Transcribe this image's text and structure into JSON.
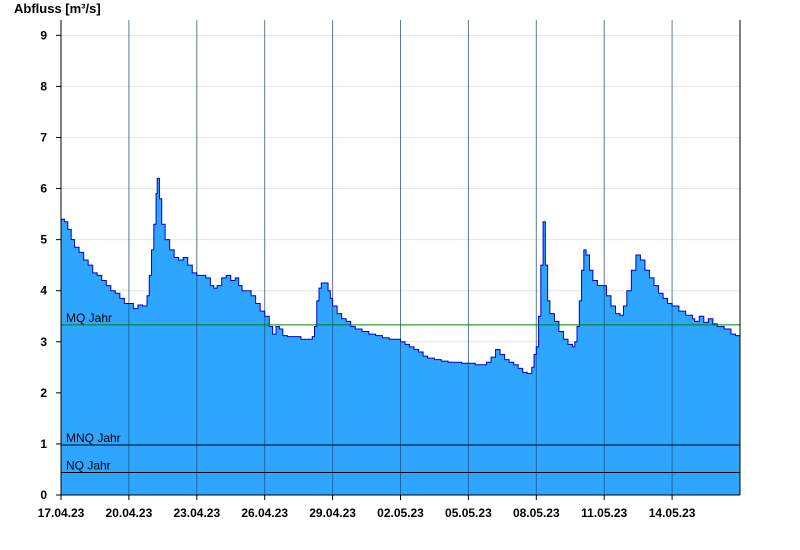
{
  "chart_data": {
    "type": "area",
    "ylabel": "Abfluss [m³/s]",
    "xlabel": "",
    "ylim": [
      0,
      9.3
    ],
    "yticks": [
      0,
      1,
      2,
      3,
      4,
      5,
      6,
      7,
      8,
      9
    ],
    "x_start": "17.04.23",
    "x_end": "16.05.23",
    "x_days_total": 30,
    "xticks": [
      {
        "label": "17.04.23",
        "day": 0
      },
      {
        "label": "20.04.23",
        "day": 3
      },
      {
        "label": "23.04.23",
        "day": 6
      },
      {
        "label": "26.04.23",
        "day": 9
      },
      {
        "label": "29.04.23",
        "day": 12
      },
      {
        "label": "02.05.23",
        "day": 15
      },
      {
        "label": "05.05.23",
        "day": 18
      },
      {
        "label": "08.05.23",
        "day": 21
      },
      {
        "label": "11.05.23",
        "day": 24
      },
      {
        "label": "14.05.23",
        "day": 27
      }
    ],
    "grid": true,
    "colors": {
      "fill": "#2ea6ff",
      "line": "#0000cc",
      "mq_line": "#008000",
      "ref_line": "#000000",
      "grid": "#e6e6e6",
      "day_line": "#1f4f7a"
    },
    "reference_lines": [
      {
        "name": "MQ Jahr",
        "value": 3.33,
        "color": "#008000"
      },
      {
        "name": "MNQ Jahr",
        "value": 0.98,
        "color": "#000000"
      },
      {
        "name": "NQ Jahr",
        "value": 0.44,
        "color": "#000000"
      }
    ],
    "series": [
      {
        "name": "",
        "points": [
          [
            0.0,
            5.4
          ],
          [
            0.15,
            5.35
          ],
          [
            0.3,
            5.2
          ],
          [
            0.45,
            5.0
          ],
          [
            0.6,
            4.85
          ],
          [
            0.8,
            4.75
          ],
          [
            1.0,
            4.6
          ],
          [
            1.2,
            4.5
          ],
          [
            1.4,
            4.35
          ],
          [
            1.6,
            4.3
          ],
          [
            1.8,
            4.2
          ],
          [
            2.0,
            4.1
          ],
          [
            2.2,
            4.0
          ],
          [
            2.4,
            3.95
          ],
          [
            2.6,
            3.85
          ],
          [
            2.8,
            3.75
          ],
          [
            3.0,
            3.75
          ],
          [
            3.2,
            3.65
          ],
          [
            3.4,
            3.72
          ],
          [
            3.6,
            3.7
          ],
          [
            3.8,
            3.9
          ],
          [
            3.9,
            4.3
          ],
          [
            4.0,
            4.8
          ],
          [
            4.1,
            5.3
          ],
          [
            4.2,
            5.9
          ],
          [
            4.25,
            6.2
          ],
          [
            4.35,
            5.8
          ],
          [
            4.45,
            5.3
          ],
          [
            4.6,
            5.0
          ],
          [
            4.8,
            4.8
          ],
          [
            5.0,
            4.65
          ],
          [
            5.2,
            4.6
          ],
          [
            5.4,
            4.65
          ],
          [
            5.6,
            4.5
          ],
          [
            5.8,
            4.35
          ],
          [
            6.0,
            4.3
          ],
          [
            6.2,
            4.3
          ],
          [
            6.4,
            4.25
          ],
          [
            6.6,
            4.1
          ],
          [
            6.75,
            4.05
          ],
          [
            6.9,
            4.1
          ],
          [
            7.1,
            4.25
          ],
          [
            7.3,
            4.3
          ],
          [
            7.5,
            4.2
          ],
          [
            7.7,
            4.25
          ],
          [
            7.85,
            4.1
          ],
          [
            8.0,
            4.0
          ],
          [
            8.2,
            4.0
          ],
          [
            8.4,
            3.9
          ],
          [
            8.6,
            3.75
          ],
          [
            8.8,
            3.6
          ],
          [
            9.0,
            3.5
          ],
          [
            9.2,
            3.3
          ],
          [
            9.35,
            3.15
          ],
          [
            9.5,
            3.3
          ],
          [
            9.65,
            3.25
          ],
          [
            9.8,
            3.12
          ],
          [
            10.0,
            3.1
          ],
          [
            10.2,
            3.1
          ],
          [
            10.4,
            3.1
          ],
          [
            10.6,
            3.05
          ],
          [
            10.8,
            3.05
          ],
          [
            11.0,
            3.05
          ],
          [
            11.1,
            3.1
          ],
          [
            11.2,
            3.3
          ],
          [
            11.3,
            3.8
          ],
          [
            11.4,
            4.05
          ],
          [
            11.5,
            4.15
          ],
          [
            11.65,
            4.15
          ],
          [
            11.8,
            4.0
          ],
          [
            11.9,
            3.85
          ],
          [
            12.0,
            3.7
          ],
          [
            12.2,
            3.55
          ],
          [
            12.4,
            3.45
          ],
          [
            12.6,
            3.4
          ],
          [
            12.8,
            3.3
          ],
          [
            13.0,
            3.25
          ],
          [
            13.3,
            3.2
          ],
          [
            13.6,
            3.15
          ],
          [
            13.9,
            3.12
          ],
          [
            14.2,
            3.08
          ],
          [
            14.5,
            3.05
          ],
          [
            14.8,
            3.05
          ],
          [
            15.0,
            3.0
          ],
          [
            15.2,
            2.95
          ],
          [
            15.4,
            2.9
          ],
          [
            15.6,
            2.85
          ],
          [
            15.8,
            2.8
          ],
          [
            16.0,
            2.72
          ],
          [
            16.2,
            2.68
          ],
          [
            16.5,
            2.65
          ],
          [
            16.8,
            2.62
          ],
          [
            17.1,
            2.6
          ],
          [
            17.4,
            2.6
          ],
          [
            17.7,
            2.58
          ],
          [
            18.0,
            2.58
          ],
          [
            18.3,
            2.55
          ],
          [
            18.6,
            2.55
          ],
          [
            18.8,
            2.6
          ],
          [
            19.0,
            2.7
          ],
          [
            19.2,
            2.85
          ],
          [
            19.4,
            2.75
          ],
          [
            19.6,
            2.65
          ],
          [
            19.8,
            2.6
          ],
          [
            20.0,
            2.55
          ],
          [
            20.2,
            2.48
          ],
          [
            20.4,
            2.4
          ],
          [
            20.6,
            2.38
          ],
          [
            20.8,
            2.5
          ],
          [
            20.9,
            2.75
          ],
          [
            21.0,
            2.9
          ],
          [
            21.1,
            3.5
          ],
          [
            21.2,
            4.5
          ],
          [
            21.3,
            5.35
          ],
          [
            21.4,
            4.5
          ],
          [
            21.5,
            3.8
          ],
          [
            21.6,
            3.55
          ],
          [
            21.8,
            3.4
          ],
          [
            22.0,
            3.2
          ],
          [
            22.2,
            3.05
          ],
          [
            22.4,
            2.95
          ],
          [
            22.6,
            2.9
          ],
          [
            22.7,
            3.0
          ],
          [
            22.8,
            3.3
          ],
          [
            22.9,
            3.8
          ],
          [
            23.0,
            4.4
          ],
          [
            23.1,
            4.8
          ],
          [
            23.2,
            4.7
          ],
          [
            23.35,
            4.4
          ],
          [
            23.5,
            4.2
          ],
          [
            23.7,
            4.1
          ],
          [
            23.9,
            4.1
          ],
          [
            24.1,
            3.9
          ],
          [
            24.3,
            3.7
          ],
          [
            24.5,
            3.55
          ],
          [
            24.7,
            3.52
          ],
          [
            24.85,
            3.7
          ],
          [
            25.0,
            4.0
          ],
          [
            25.2,
            4.4
          ],
          [
            25.4,
            4.7
          ],
          [
            25.6,
            4.6
          ],
          [
            25.8,
            4.4
          ],
          [
            26.0,
            4.25
          ],
          [
            26.2,
            4.1
          ],
          [
            26.4,
            3.95
          ],
          [
            26.6,
            3.85
          ],
          [
            26.8,
            3.75
          ],
          [
            27.0,
            3.7
          ],
          [
            27.3,
            3.6
          ],
          [
            27.6,
            3.52
          ],
          [
            27.9,
            3.45
          ],
          [
            28.0,
            3.4
          ],
          [
            28.2,
            3.5
          ],
          [
            28.4,
            3.38
          ],
          [
            28.6,
            3.45
          ],
          [
            28.8,
            3.35
          ],
          [
            29.0,
            3.3
          ],
          [
            29.3,
            3.25
          ],
          [
            29.6,
            3.15
          ],
          [
            29.8,
            3.12
          ],
          [
            30.0,
            3.05
          ]
        ]
      }
    ]
  }
}
